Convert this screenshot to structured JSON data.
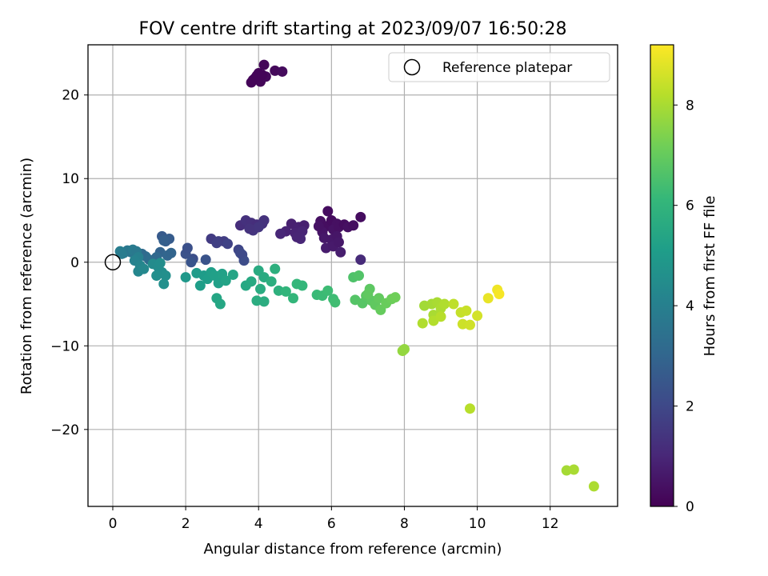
{
  "chart_data": {
    "type": "scatter",
    "title": "FOV centre drift starting at 2023/09/07 16:50:28",
    "xlabel": "Angular distance from reference (arcmin)",
    "ylabel": "Rotation from reference (arcmin)",
    "xlim": [
      -0.68,
      13.85
    ],
    "ylim": [
      -29.2,
      26.0
    ],
    "x_ticks": [
      0,
      2,
      4,
      6,
      8,
      10,
      12
    ],
    "y_ticks": [
      -20,
      -10,
      0,
      10,
      20
    ],
    "grid": true,
    "legend": {
      "position": "upper-right",
      "entries": [
        "Reference platepar"
      ]
    },
    "reference_point": {
      "label": "Reference platepar",
      "x": 0,
      "y": 0
    },
    "colorbar": {
      "label": "Hours from first FF file",
      "colormap": "viridis",
      "range": [
        0,
        9.2
      ],
      "ticks": [
        0,
        2,
        4,
        6,
        8
      ]
    },
    "colormap_stops": [
      "#440154",
      "#482878",
      "#3e4a89",
      "#31688e",
      "#26828e",
      "#1f9e89",
      "#35b779",
      "#6ece58",
      "#b5de2b",
      "#fde725"
    ],
    "points": [
      {
        "x": 3.85,
        "y": 21.8,
        "h": 0.1
      },
      {
        "x": 3.95,
        "y": 22.3,
        "h": 0.1
      },
      {
        "x": 4.05,
        "y": 21.6,
        "h": 0.15
      },
      {
        "x": 4.0,
        "y": 22.6,
        "h": 0.1
      },
      {
        "x": 4.2,
        "y": 22.2,
        "h": 0.2
      },
      {
        "x": 4.15,
        "y": 23.6,
        "h": 0.15
      },
      {
        "x": 3.9,
        "y": 22.0,
        "h": 0.1
      },
      {
        "x": 4.45,
        "y": 22.9,
        "h": 0.2
      },
      {
        "x": 4.65,
        "y": 22.8,
        "h": 0.25
      },
      {
        "x": 3.8,
        "y": 21.5,
        "h": 0.1
      },
      {
        "x": 4.1,
        "y": 22.4,
        "h": 0.1
      },
      {
        "x": 5.9,
        "y": 6.1,
        "h": 0.3
      },
      {
        "x": 5.7,
        "y": 4.9,
        "h": 0.4
      },
      {
        "x": 5.85,
        "y": 4.3,
        "h": 0.35
      },
      {
        "x": 6.0,
        "y": 5.0,
        "h": 0.3
      },
      {
        "x": 6.15,
        "y": 4.6,
        "h": 0.4
      },
      {
        "x": 6.05,
        "y": 3.9,
        "h": 0.45
      },
      {
        "x": 5.75,
        "y": 3.6,
        "h": 0.5
      },
      {
        "x": 6.2,
        "y": 4.2,
        "h": 0.4
      },
      {
        "x": 6.35,
        "y": 4.5,
        "h": 0.3
      },
      {
        "x": 6.45,
        "y": 4.2,
        "h": 0.4
      },
      {
        "x": 6.6,
        "y": 4.4,
        "h": 0.35
      },
      {
        "x": 6.8,
        "y": 5.4,
        "h": 0.3
      },
      {
        "x": 5.8,
        "y": 2.9,
        "h": 0.6
      },
      {
        "x": 6.0,
        "y": 2.7,
        "h": 0.6
      },
      {
        "x": 6.15,
        "y": 3.1,
        "h": 0.55
      },
      {
        "x": 5.85,
        "y": 1.7,
        "h": 0.7
      },
      {
        "x": 6.05,
        "y": 1.9,
        "h": 0.65
      },
      {
        "x": 6.2,
        "y": 2.4,
        "h": 0.6
      },
      {
        "x": 6.25,
        "y": 1.2,
        "h": 0.75
      },
      {
        "x": 5.65,
        "y": 4.3,
        "h": 0.45
      },
      {
        "x": 4.9,
        "y": 4.6,
        "h": 0.8
      },
      {
        "x": 5.1,
        "y": 4.2,
        "h": 0.85
      },
      {
        "x": 5.25,
        "y": 4.4,
        "h": 0.8
      },
      {
        "x": 5.0,
        "y": 3.5,
        "h": 0.9
      },
      {
        "x": 5.2,
        "y": 3.7,
        "h": 0.95
      },
      {
        "x": 4.75,
        "y": 3.7,
        "h": 0.9
      },
      {
        "x": 4.6,
        "y": 3.4,
        "h": 1.0
      },
      {
        "x": 5.15,
        "y": 2.8,
        "h": 1.0
      },
      {
        "x": 5.05,
        "y": 3.0,
        "h": 0.95
      },
      {
        "x": 6.8,
        "y": 0.3,
        "h": 1.1
      },
      {
        "x": 3.5,
        "y": 4.4,
        "h": 1.2
      },
      {
        "x": 3.65,
        "y": 5.0,
        "h": 1.3
      },
      {
        "x": 3.8,
        "y": 4.7,
        "h": 1.25
      },
      {
        "x": 3.95,
        "y": 4.5,
        "h": 1.2
      },
      {
        "x": 4.1,
        "y": 4.6,
        "h": 1.3
      },
      {
        "x": 4.15,
        "y": 5.0,
        "h": 1.35
      },
      {
        "x": 3.85,
        "y": 3.8,
        "h": 1.4
      },
      {
        "x": 4.0,
        "y": 4.2,
        "h": 1.4
      },
      {
        "x": 3.75,
        "y": 4.0,
        "h": 1.35
      },
      {
        "x": 2.7,
        "y": 2.8,
        "h": 1.6
      },
      {
        "x": 2.9,
        "y": 2.5,
        "h": 1.7
      },
      {
        "x": 3.05,
        "y": 2.5,
        "h": 1.65
      },
      {
        "x": 3.15,
        "y": 2.2,
        "h": 1.8
      },
      {
        "x": 2.85,
        "y": 2.3,
        "h": 1.75
      },
      {
        "x": 3.45,
        "y": 1.5,
        "h": 1.9
      },
      {
        "x": 3.55,
        "y": 0.9,
        "h": 2.0
      },
      {
        "x": 3.6,
        "y": 0.2,
        "h": 2.1
      },
      {
        "x": 3.5,
        "y": 1.1,
        "h": 2.0
      },
      {
        "x": 2.2,
        "y": 0.4,
        "h": 2.2
      },
      {
        "x": 2.0,
        "y": 1.0,
        "h": 2.3
      },
      {
        "x": 2.05,
        "y": 1.7,
        "h": 2.25
      },
      {
        "x": 2.15,
        "y": 0.0,
        "h": 2.4
      },
      {
        "x": 2.55,
        "y": 0.3,
        "h": 2.35
      },
      {
        "x": 1.35,
        "y": 3.1,
        "h": 2.6
      },
      {
        "x": 1.45,
        "y": 2.5,
        "h": 2.7
      },
      {
        "x": 1.55,
        "y": 2.8,
        "h": 2.65
      },
      {
        "x": 1.4,
        "y": 2.6,
        "h": 2.75
      },
      {
        "x": 1.3,
        "y": 1.2,
        "h": 2.9
      },
      {
        "x": 1.5,
        "y": 0.8,
        "h": 3.0
      },
      {
        "x": 1.6,
        "y": 1.1,
        "h": 2.95
      },
      {
        "x": 1.2,
        "y": 0.6,
        "h": 3.1
      },
      {
        "x": 1.0,
        "y": 0.3,
        "h": 3.2
      },
      {
        "x": 0.9,
        "y": 0.7,
        "h": 3.3
      },
      {
        "x": 0.8,
        "y": 1.0,
        "h": 3.2
      },
      {
        "x": 0.3,
        "y": 1.1,
        "h": 3.6
      },
      {
        "x": 0.4,
        "y": 1.4,
        "h": 3.7
      },
      {
        "x": 0.5,
        "y": 1.2,
        "h": 3.6
      },
      {
        "x": 0.55,
        "y": 1.5,
        "h": 3.8
      },
      {
        "x": 0.65,
        "y": 1.3,
        "h": 3.75
      },
      {
        "x": 0.2,
        "y": 1.3,
        "h": 3.9
      },
      {
        "x": 0.25,
        "y": 1.0,
        "h": 3.85
      },
      {
        "x": 0.7,
        "y": 0.6,
        "h": 4.0
      },
      {
        "x": 0.6,
        "y": 0.2,
        "h": 4.1
      },
      {
        "x": 0.75,
        "y": -0.4,
        "h": 4.2
      },
      {
        "x": 0.7,
        "y": -1.1,
        "h": 4.25
      },
      {
        "x": 0.85,
        "y": -0.8,
        "h": 4.3
      },
      {
        "x": 1.1,
        "y": -0.2,
        "h": 4.4
      },
      {
        "x": 1.25,
        "y": -0.6,
        "h": 4.45
      },
      {
        "x": 1.35,
        "y": -1.2,
        "h": 4.5
      },
      {
        "x": 1.45,
        "y": -1.6,
        "h": 4.55
      },
      {
        "x": 1.4,
        "y": -2.6,
        "h": 4.6
      },
      {
        "x": 1.2,
        "y": -1.6,
        "h": 4.55
      },
      {
        "x": 1.3,
        "y": -0.1,
        "h": 4.5
      },
      {
        "x": 2.0,
        "y": -1.8,
        "h": 4.9
      },
      {
        "x": 2.3,
        "y": -1.3,
        "h": 5.0
      },
      {
        "x": 2.4,
        "y": -2.8,
        "h": 5.1
      },
      {
        "x": 2.5,
        "y": -1.6,
        "h": 5.05
      },
      {
        "x": 2.6,
        "y": -2.0,
        "h": 5.1
      },
      {
        "x": 2.7,
        "y": -1.2,
        "h": 5.15
      },
      {
        "x": 2.8,
        "y": -1.6,
        "h": 5.2
      },
      {
        "x": 2.9,
        "y": -2.5,
        "h": 5.2
      },
      {
        "x": 3.0,
        "y": -1.4,
        "h": 5.25
      },
      {
        "x": 3.1,
        "y": -2.2,
        "h": 5.3
      },
      {
        "x": 3.3,
        "y": -1.5,
        "h": 5.35
      },
      {
        "x": 2.85,
        "y": -4.3,
        "h": 5.4
      },
      {
        "x": 2.95,
        "y": -5.0,
        "h": 5.45
      },
      {
        "x": 3.65,
        "y": -2.8,
        "h": 5.5
      },
      {
        "x": 3.8,
        "y": -2.3,
        "h": 5.55
      },
      {
        "x": 4.0,
        "y": -1.0,
        "h": 5.6
      },
      {
        "x": 4.15,
        "y": -1.8,
        "h": 5.6
      },
      {
        "x": 4.05,
        "y": -3.2,
        "h": 5.65
      },
      {
        "x": 3.95,
        "y": -4.6,
        "h": 5.7
      },
      {
        "x": 4.15,
        "y": -4.7,
        "h": 5.7
      },
      {
        "x": 4.35,
        "y": -2.3,
        "h": 5.75
      },
      {
        "x": 4.45,
        "y": -0.8,
        "h": 5.8
      },
      {
        "x": 4.55,
        "y": -3.4,
        "h": 5.85
      },
      {
        "x": 4.75,
        "y": -3.5,
        "h": 6.0
      },
      {
        "x": 4.95,
        "y": -4.3,
        "h": 6.05
      },
      {
        "x": 5.05,
        "y": -2.6,
        "h": 6.1
      },
      {
        "x": 5.2,
        "y": -2.8,
        "h": 6.1
      },
      {
        "x": 5.6,
        "y": -3.9,
        "h": 6.2
      },
      {
        "x": 5.75,
        "y": -4.0,
        "h": 6.25
      },
      {
        "x": 5.9,
        "y": -3.4,
        "h": 6.3
      },
      {
        "x": 6.05,
        "y": -4.4,
        "h": 6.3
      },
      {
        "x": 6.1,
        "y": -4.8,
        "h": 6.35
      },
      {
        "x": 6.6,
        "y": -1.8,
        "h": 6.6
      },
      {
        "x": 6.75,
        "y": -1.6,
        "h": 6.65
      },
      {
        "x": 6.65,
        "y": -4.5,
        "h": 6.7
      },
      {
        "x": 6.85,
        "y": -4.9,
        "h": 6.75
      },
      {
        "x": 6.95,
        "y": -4.0,
        "h": 6.8
      },
      {
        "x": 7.05,
        "y": -3.2,
        "h": 6.85
      },
      {
        "x": 7.1,
        "y": -4.6,
        "h": 6.85
      },
      {
        "x": 7.2,
        "y": -5.1,
        "h": 6.9
      },
      {
        "x": 7.3,
        "y": -4.3,
        "h": 6.95
      },
      {
        "x": 7.35,
        "y": -5.7,
        "h": 7.0
      },
      {
        "x": 7.5,
        "y": -4.9,
        "h": 7.05
      },
      {
        "x": 7.65,
        "y": -4.4,
        "h": 7.1
      },
      {
        "x": 7.75,
        "y": -4.2,
        "h": 7.15
      },
      {
        "x": 7.0,
        "y": -3.8,
        "h": 6.9
      },
      {
        "x": 7.95,
        "y": -10.6,
        "h": 7.7
      },
      {
        "x": 8.0,
        "y": -10.4,
        "h": 7.7
      },
      {
        "x": 8.55,
        "y": -5.2,
        "h": 7.9
      },
      {
        "x": 8.75,
        "y": -5.0,
        "h": 7.95
      },
      {
        "x": 8.9,
        "y": -4.8,
        "h": 8.0
      },
      {
        "x": 8.8,
        "y": -6.3,
        "h": 8.0
      },
      {
        "x": 9.0,
        "y": -5.5,
        "h": 8.05
      },
      {
        "x": 9.1,
        "y": -5.0,
        "h": 8.1
      },
      {
        "x": 8.5,
        "y": -7.3,
        "h": 8.1
      },
      {
        "x": 8.8,
        "y": -7.0,
        "h": 8.15
      },
      {
        "x": 9.0,
        "y": -6.5,
        "h": 8.2
      },
      {
        "x": 9.35,
        "y": -5.0,
        "h": 8.3
      },
      {
        "x": 9.55,
        "y": -6.0,
        "h": 8.4
      },
      {
        "x": 9.7,
        "y": -5.8,
        "h": 8.45
      },
      {
        "x": 9.6,
        "y": -7.4,
        "h": 8.5
      },
      {
        "x": 9.8,
        "y": -7.5,
        "h": 8.55
      },
      {
        "x": 10.0,
        "y": -6.4,
        "h": 8.6
      },
      {
        "x": 9.8,
        "y": -17.5,
        "h": 8.2
      },
      {
        "x": 12.45,
        "y": -24.9,
        "h": 7.95
      },
      {
        "x": 12.65,
        "y": -24.8,
        "h": 8.0
      },
      {
        "x": 13.2,
        "y": -26.8,
        "h": 8.05
      },
      {
        "x": 10.3,
        "y": -4.3,
        "h": 8.9
      },
      {
        "x": 10.55,
        "y": -3.3,
        "h": 9.0
      },
      {
        "x": 10.6,
        "y": -3.8,
        "h": 9.1
      }
    ]
  }
}
